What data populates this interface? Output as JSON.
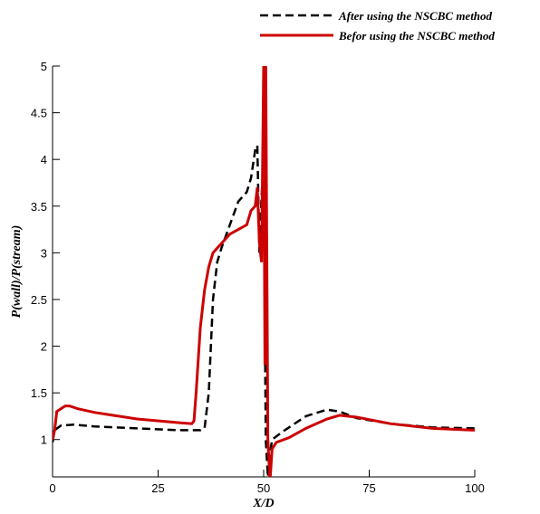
{
  "chart_data": {
    "type": "line",
    "xlabel": "X/D",
    "ylabel": "P(wall)/P(stream)",
    "xlim": [
      0,
      100
    ],
    "ylim": [
      0.6,
      5
    ],
    "xticks": [
      0,
      25,
      50,
      75,
      100
    ],
    "yticks": [
      1,
      1.5,
      2,
      2.5,
      3,
      3.5,
      4,
      4.5,
      5
    ],
    "legend": "top-right",
    "series": [
      {
        "name": "After using the NSCBC method",
        "color": "#000000",
        "dash": true,
        "x": [
          0,
          0.5,
          2,
          5,
          10,
          20,
          30,
          35,
          36,
          37,
          38,
          39,
          40,
          42,
          44,
          46,
          47,
          48,
          48.5,
          49,
          49.5,
          50,
          50.5,
          51,
          51.5,
          52,
          55,
          60,
          65,
          68,
          72,
          80,
          90,
          100
        ],
        "values": [
          0.97,
          1.1,
          1.15,
          1.16,
          1.14,
          1.12,
          1.1,
          1.1,
          1.12,
          1.5,
          2.5,
          2.9,
          3.05,
          3.3,
          3.55,
          3.65,
          3.8,
          4.1,
          4.15,
          3.0,
          3.6,
          4.0,
          1.0,
          0.6,
          0.85,
          1.0,
          1.1,
          1.25,
          1.32,
          1.3,
          1.23,
          1.17,
          1.13,
          1.12
        ]
      },
      {
        "name": "Befor using the NSCBC method",
        "color": "#cc0000",
        "dash": false,
        "x": [
          0,
          0.5,
          1,
          2,
          3,
          4,
          6,
          10,
          20,
          30,
          33,
          33.5,
          34,
          35,
          36,
          37,
          38,
          40,
          42,
          44,
          46,
          47,
          48,
          48.5,
          49,
          49.5,
          50,
          50.3,
          50.5,
          51,
          51.5,
          52,
          53,
          56,
          60,
          65,
          68,
          72,
          80,
          90,
          100
        ],
        "values": [
          1.0,
          1.1,
          1.3,
          1.33,
          1.36,
          1.36,
          1.33,
          1.29,
          1.22,
          1.18,
          1.17,
          1.2,
          1.5,
          2.2,
          2.6,
          2.85,
          3.0,
          3.1,
          3.2,
          3.25,
          3.3,
          3.45,
          3.5,
          3.7,
          3.1,
          2.9,
          5.0,
          1.8,
          5.0,
          1.0,
          0.55,
          0.9,
          0.97,
          1.02,
          1.12,
          1.22,
          1.26,
          1.24,
          1.17,
          1.12,
          1.1
        ]
      }
    ]
  }
}
